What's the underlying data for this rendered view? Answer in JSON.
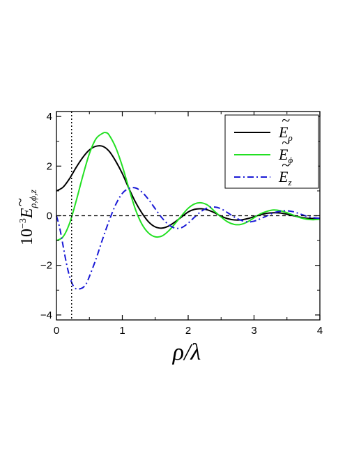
{
  "chart_data": {
    "type": "line",
    "xlabel": "ρ/λ",
    "ylabel": {
      "prefix": "10",
      "exponent": "−3",
      "symbol": "E",
      "subscript": "ρ,ϕ,z"
    },
    "xlim": [
      0,
      4
    ],
    "ylim": [
      -4.2,
      4.2
    ],
    "xticks": [
      0,
      1,
      2,
      3,
      4
    ],
    "yticks": [
      -4,
      -2,
      0,
      2,
      4
    ],
    "grid": false,
    "legend_position": "top-right",
    "reference_lines": {
      "horizontal_y": 0,
      "vertical_x": 0.23
    },
    "colors": {
      "E_rho": "#000000",
      "E_phi": "#22e022",
      "E_z": "#1a1ad6"
    },
    "series": [
      {
        "name": "Ẽρ",
        "symbol": "E",
        "subscript": "ρ",
        "style": "solid",
        "x": [
          0,
          0.1,
          0.2,
          0.3,
          0.4,
          0.5,
          0.6,
          0.7,
          0.8,
          0.9,
          1.0,
          1.1,
          1.2,
          1.3,
          1.4,
          1.5,
          1.6,
          1.7,
          1.8,
          1.9,
          2.0,
          2.1,
          2.2,
          2.3,
          2.4,
          2.5,
          2.6,
          2.7,
          2.8,
          2.9,
          3.0,
          3.1,
          3.2,
          3.3,
          3.4,
          3.5,
          3.6,
          3.7,
          3.8,
          3.9,
          4.0
        ],
        "values": [
          1.0,
          1.15,
          1.5,
          1.95,
          2.35,
          2.65,
          2.8,
          2.8,
          2.6,
          2.2,
          1.7,
          1.1,
          0.55,
          0.1,
          -0.25,
          -0.45,
          -0.5,
          -0.42,
          -0.25,
          -0.05,
          0.15,
          0.26,
          0.28,
          0.23,
          0.12,
          -0.02,
          -0.12,
          -0.17,
          -0.17,
          -0.12,
          -0.04,
          0.04,
          0.1,
          0.12,
          0.11,
          0.06,
          0.0,
          -0.06,
          -0.1,
          -0.11,
          -0.1
        ]
      },
      {
        "name": "Ẽϕ",
        "symbol": "E",
        "subscript": "ϕ",
        "style": "solid",
        "x": [
          0,
          0.1,
          0.2,
          0.3,
          0.4,
          0.5,
          0.6,
          0.7,
          0.75,
          0.8,
          0.9,
          1.0,
          1.1,
          1.2,
          1.3,
          1.4,
          1.5,
          1.6,
          1.7,
          1.8,
          1.9,
          2.0,
          2.1,
          2.2,
          2.3,
          2.4,
          2.5,
          2.6,
          2.7,
          2.8,
          2.9,
          3.0,
          3.1,
          3.2,
          3.3,
          3.4,
          3.5,
          3.6,
          3.7,
          3.8,
          3.9,
          4.0
        ],
        "values": [
          -1.0,
          -0.85,
          -0.3,
          0.6,
          1.6,
          2.5,
          3.1,
          3.32,
          3.35,
          3.25,
          2.75,
          2.0,
          1.1,
          0.25,
          -0.35,
          -0.7,
          -0.85,
          -0.82,
          -0.62,
          -0.32,
          0.0,
          0.3,
          0.48,
          0.52,
          0.42,
          0.18,
          -0.05,
          -0.25,
          -0.35,
          -0.35,
          -0.25,
          -0.08,
          0.08,
          0.18,
          0.23,
          0.2,
          0.12,
          0.02,
          -0.08,
          -0.14,
          -0.16,
          -0.14
        ]
      },
      {
        "name": "Ẽz",
        "symbol": "E",
        "subscript": "z",
        "style": "dashdot",
        "x": [
          0,
          0.05,
          0.1,
          0.15,
          0.2,
          0.25,
          0.3,
          0.35,
          0.4,
          0.45,
          0.5,
          0.6,
          0.7,
          0.8,
          0.9,
          1.0,
          1.1,
          1.2,
          1.3,
          1.4,
          1.5,
          1.6,
          1.7,
          1.8,
          1.9,
          2.0,
          2.1,
          2.2,
          2.3,
          2.4,
          2.5,
          2.6,
          2.7,
          2.8,
          2.9,
          3.0,
          3.1,
          3.2,
          3.3,
          3.4,
          3.5,
          3.6,
          3.7,
          3.8,
          3.9,
          4.0
        ],
        "values": [
          0.0,
          -0.5,
          -1.2,
          -1.9,
          -2.45,
          -2.8,
          -2.95,
          -2.95,
          -2.9,
          -2.75,
          -2.45,
          -1.75,
          -0.95,
          -0.2,
          0.45,
          0.9,
          1.1,
          1.12,
          0.95,
          0.65,
          0.28,
          -0.08,
          -0.35,
          -0.5,
          -0.48,
          -0.3,
          -0.05,
          0.18,
          0.32,
          0.35,
          0.28,
          0.12,
          -0.05,
          -0.18,
          -0.25,
          -0.22,
          -0.12,
          0.0,
          0.12,
          0.18,
          0.2,
          0.16,
          0.07,
          -0.02,
          -0.08,
          -0.1
        ]
      }
    ]
  }
}
